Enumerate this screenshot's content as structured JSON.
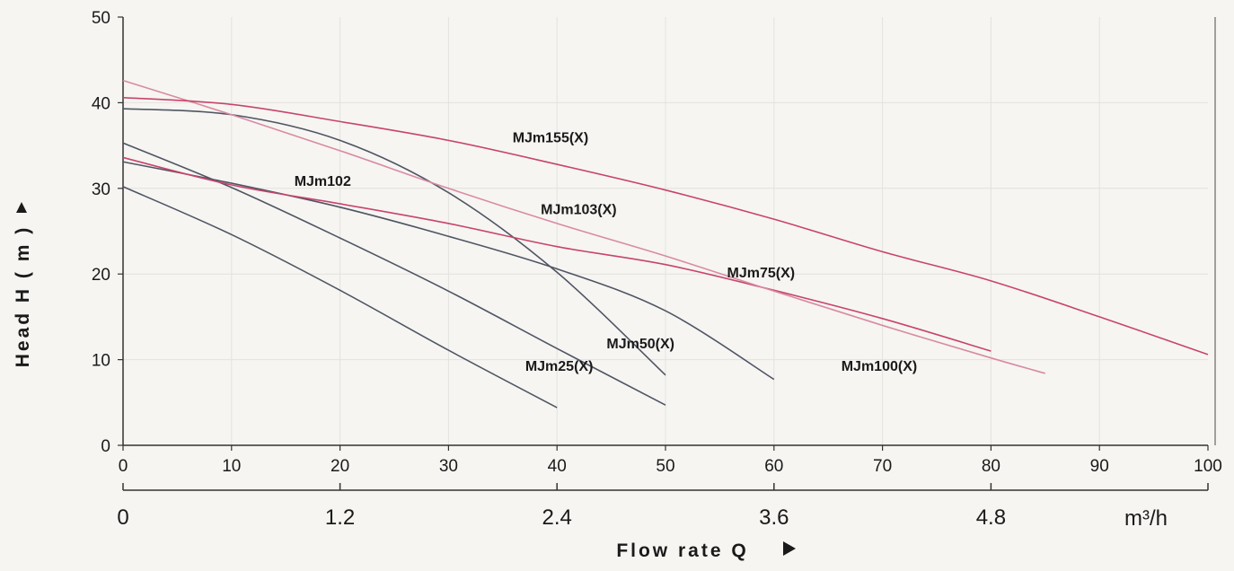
{
  "chart_data": {
    "type": "line",
    "title": "",
    "xlabel": "Flow rate Q",
    "ylabel": "Head H ( m )",
    "xlim": [
      0,
      100
    ],
    "ylim": [
      0,
      50
    ],
    "x_ticks": [
      0,
      10,
      20,
      30,
      40,
      50,
      60,
      70,
      80,
      90,
      100
    ],
    "y_ticks": [
      0,
      10,
      20,
      30,
      40,
      50
    ],
    "secondary_x_axis": {
      "unit": "m³/h",
      "ticks": [
        {
          "value": 0,
          "label": "0"
        },
        {
          "value": 1.2,
          "label": "1.2"
        },
        {
          "value": 2.4,
          "label": "2.4"
        },
        {
          "value": 3.6,
          "label": "3.6"
        },
        {
          "value": 4.8,
          "label": "4.8"
        }
      ],
      "max": 6.0
    },
    "grid": true,
    "legend": "none",
    "colors": {
      "dark": "#4f5563",
      "red": "#c8446c",
      "pink": "#d98aa4"
    },
    "series": [
      {
        "name": "MJm25(X)",
        "color": "dark",
        "label_at": [
          40.2,
          8.7
        ],
        "x": [
          0,
          10,
          20,
          30,
          40
        ],
        "y": [
          30.2,
          24.6,
          18.1,
          11.1,
          4.4
        ]
      },
      {
        "name": "MJm50(X)",
        "color": "dark",
        "label_at": [
          47.7,
          11.3
        ],
        "x": [
          0,
          10,
          20,
          30,
          40,
          50
        ],
        "y": [
          35.3,
          30.1,
          24.2,
          18.0,
          11.3,
          4.7
        ]
      },
      {
        "name": "MJm100(X)",
        "color": "dark",
        "label_at": [
          69.7,
          8.7
        ],
        "x": [
          0,
          10,
          20,
          30,
          40,
          50,
          60
        ],
        "y": [
          33.1,
          30.6,
          27.8,
          24.4,
          20.6,
          15.7,
          7.7
        ]
      },
      {
        "name": "MJm75(X)",
        "color": "dark",
        "label_at": [
          58.8,
          19.6
        ],
        "x": [
          0,
          10,
          20,
          30,
          40,
          50
        ],
        "y": [
          39.3,
          38.6,
          35.6,
          29.5,
          20.2,
          8.2
        ]
      },
      {
        "name": "MJm102",
        "color": "red",
        "label_at": [
          18.4,
          30.3
        ],
        "x": [
          0,
          10,
          20,
          30,
          40,
          50,
          60,
          70,
          80
        ],
        "y": [
          33.6,
          30.4,
          28.2,
          25.9,
          23.2,
          21.1,
          18.1,
          14.8,
          11.0
        ]
      },
      {
        "name": "MJm103(X)",
        "color": "pink",
        "label_at": [
          42.0,
          27.0
        ],
        "x": [
          0,
          10,
          20,
          30,
          40,
          50,
          60,
          70,
          80,
          85
        ],
        "y": [
          42.6,
          38.6,
          34.4,
          30.0,
          25.9,
          22.1,
          18.0,
          14.0,
          10.2,
          8.4
        ]
      },
      {
        "name": "MJm155(X)",
        "color": "red",
        "label_at": [
          39.4,
          35.4
        ],
        "x": [
          0,
          10,
          20,
          30,
          40,
          50,
          60,
          70,
          80,
          90,
          100
        ],
        "y": [
          40.6,
          39.8,
          37.8,
          35.6,
          32.8,
          29.8,
          26.4,
          22.6,
          19.2,
          15.0,
          10.6
        ]
      }
    ]
  }
}
